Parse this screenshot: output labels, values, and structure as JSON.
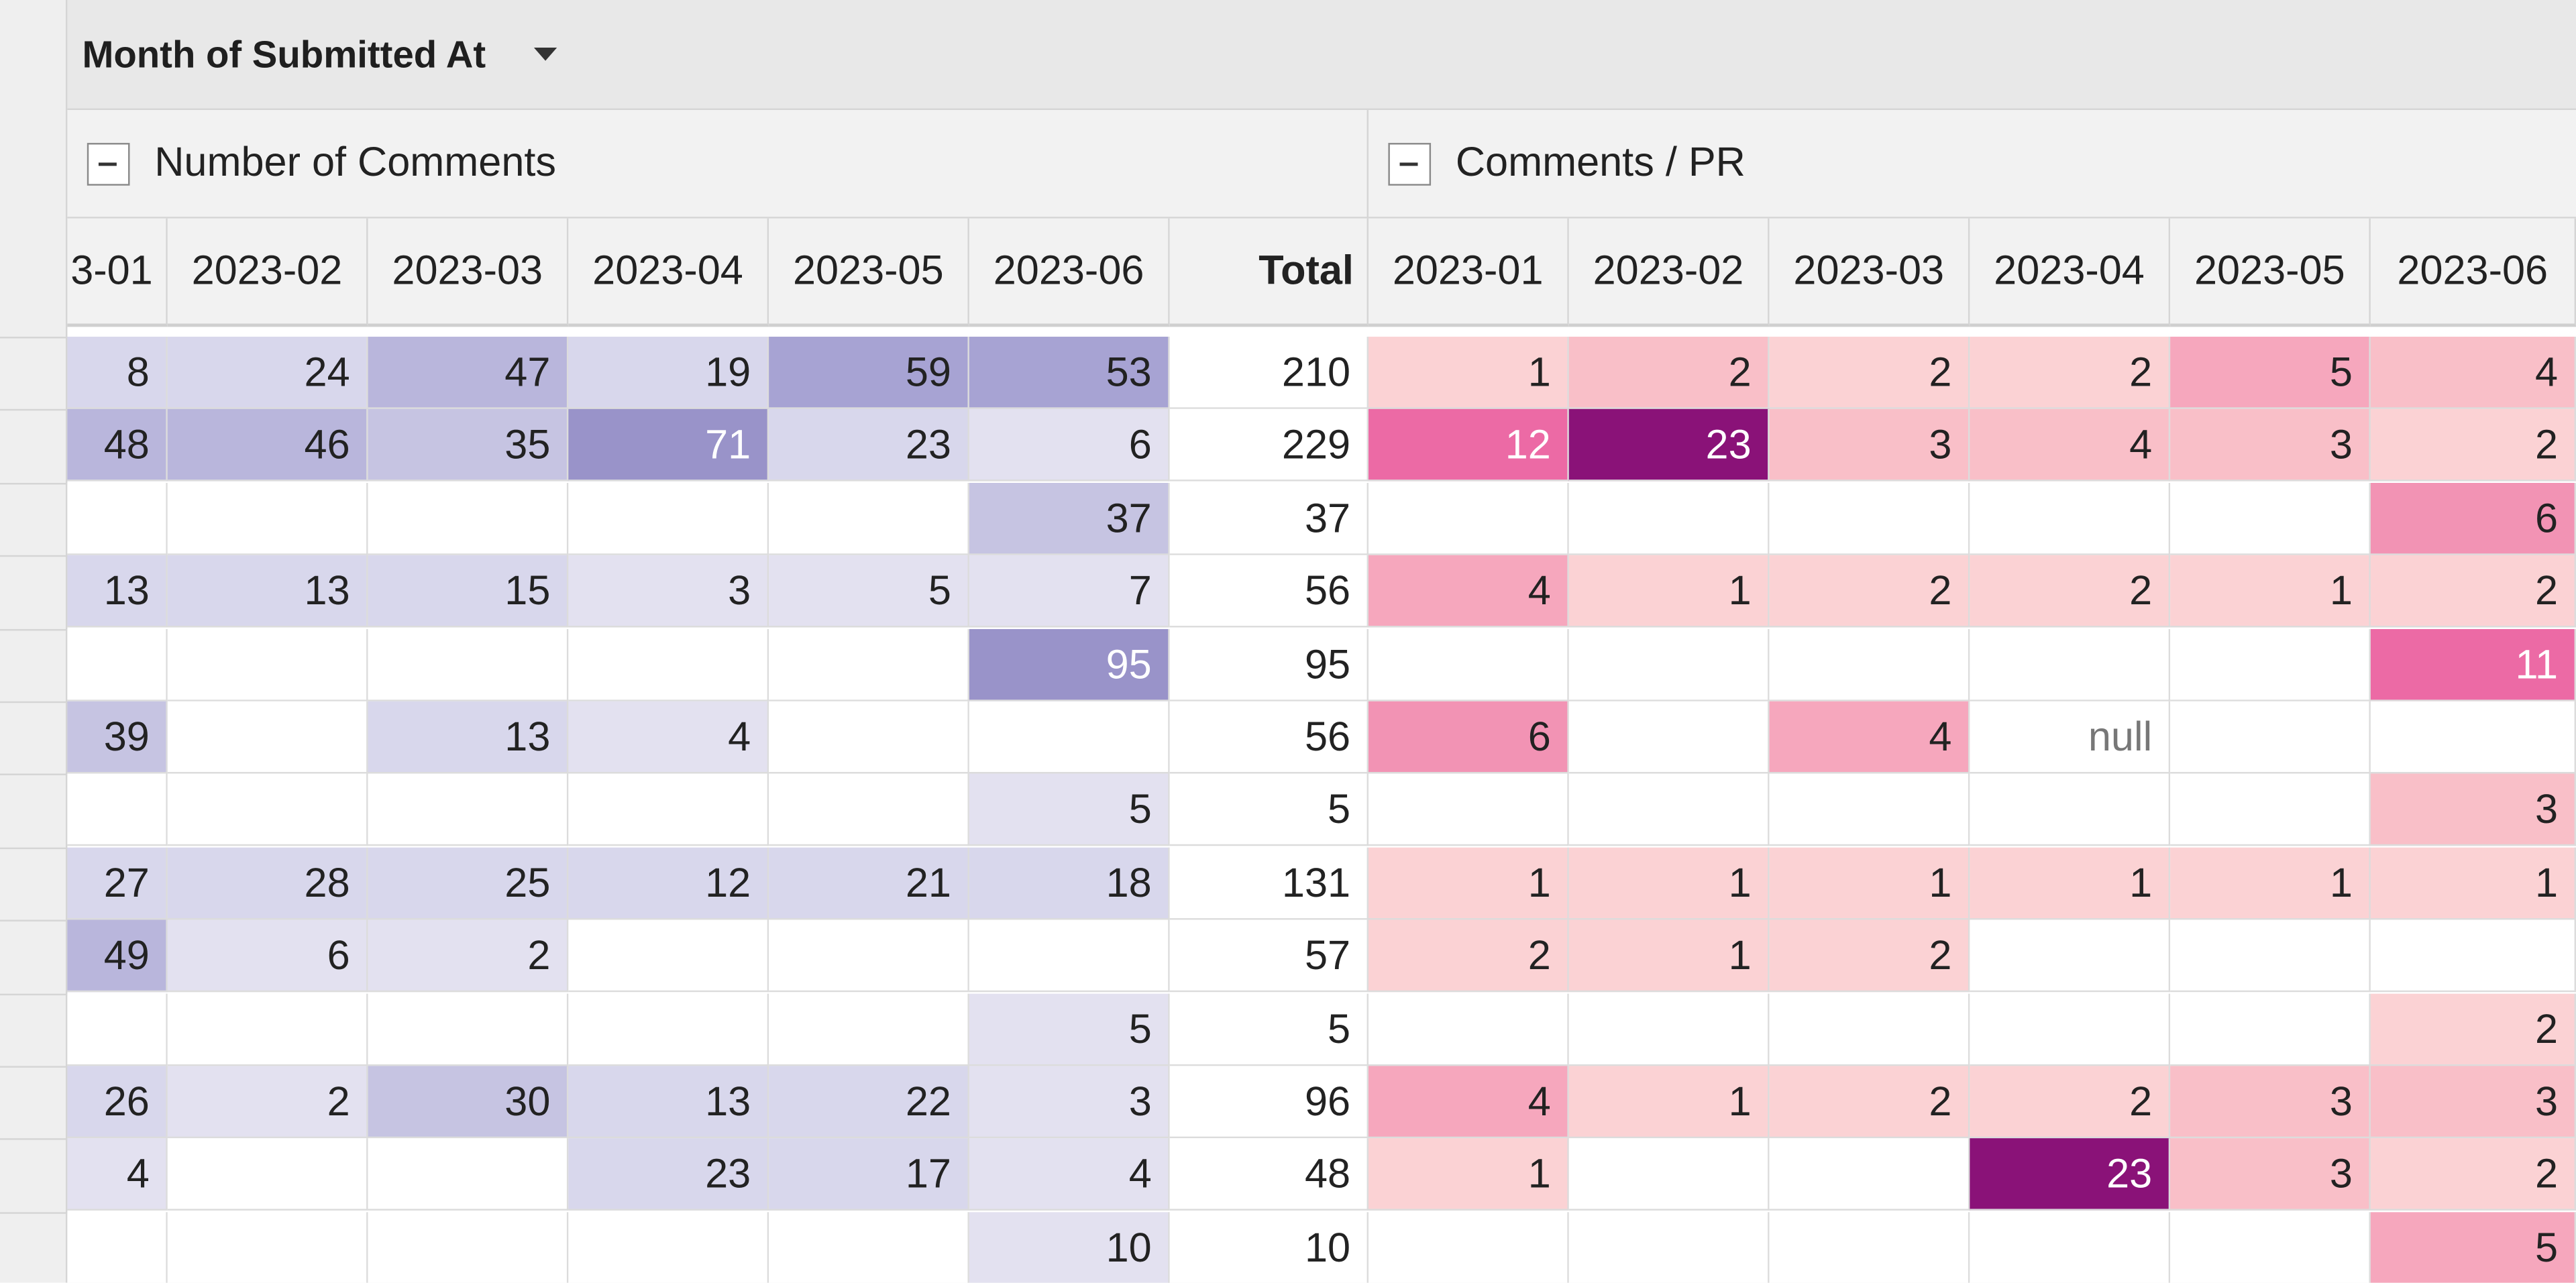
{
  "pivot": {
    "field_label": "Month of Submitted At"
  },
  "groups": [
    {
      "label": "Number of Comments"
    },
    {
      "label": "Comments / PR"
    }
  ],
  "columns": [
    "3-01",
    "2023-02",
    "2023-03",
    "2023-04",
    "2023-05",
    "2023-06",
    "Total",
    "2023-01",
    "2023-02",
    "2023-03",
    "2023-04",
    "2023-05",
    "2023-06"
  ],
  "colors": {
    "purple_scale": [
      "#e3e1f0",
      "#d8d7ec",
      "#c6c4e2",
      "#b9b6dc",
      "#a7a3d3",
      "#9993c9"
    ],
    "pink_scale": [
      "#fbd2d4",
      "#f9bfc8",
      "#f6a7bd",
      "#f293b4",
      "#ec6aa5",
      "#8a1278"
    ]
  },
  "rows": [
    {
      "values": [
        "8",
        "24",
        "47",
        "19",
        "59",
        "53",
        "210",
        "1",
        "2",
        "2",
        "2",
        "5",
        "4"
      ],
      "shade": [
        1,
        1,
        3,
        1,
        4,
        4,
        -1,
        0,
        1,
        0,
        0,
        2,
        1
      ]
    },
    {
      "values": [
        "48",
        "46",
        "35",
        "71",
        "23",
        "6",
        "229",
        "12",
        "23",
        "3",
        "4",
        "3",
        "2"
      ],
      "shade": [
        3,
        3,
        2,
        5,
        1,
        0,
        -1,
        4,
        5,
        1,
        1,
        1,
        0
      ]
    },
    {
      "values": [
        "",
        "",
        "",
        "",
        "",
        "37",
        "37",
        "",
        "",
        "",
        "",
        "",
        "6"
      ],
      "shade": [
        -1,
        -1,
        -1,
        -1,
        -1,
        2,
        -1,
        -1,
        -1,
        -1,
        -1,
        -1,
        3
      ]
    },
    {
      "values": [
        "13",
        "13",
        "15",
        "3",
        "5",
        "7",
        "56",
        "4",
        "1",
        "2",
        "2",
        "1",
        "2"
      ],
      "shade": [
        1,
        1,
        1,
        0,
        0,
        0,
        -1,
        2,
        0,
        0,
        0,
        0,
        0
      ]
    },
    {
      "values": [
        "",
        "",
        "",
        "",
        "",
        "95",
        "95",
        "",
        "",
        "",
        "",
        "",
        "11"
      ],
      "shade": [
        -1,
        -1,
        -1,
        -1,
        -1,
        5,
        -1,
        -1,
        -1,
        -1,
        -1,
        -1,
        4
      ]
    },
    {
      "values": [
        "39",
        "",
        "13",
        "4",
        "",
        "",
        "56",
        "6",
        "",
        "4",
        "null",
        "",
        ""
      ],
      "shade": [
        2,
        -1,
        1,
        0,
        -1,
        -1,
        -1,
        3,
        -1,
        2,
        -1,
        -1,
        -1
      ]
    },
    {
      "values": [
        "",
        "",
        "",
        "",
        "",
        "5",
        "5",
        "",
        "",
        "",
        "",
        "",
        "3"
      ],
      "shade": [
        -1,
        -1,
        -1,
        -1,
        -1,
        0,
        -1,
        -1,
        -1,
        -1,
        -1,
        -1,
        1
      ]
    },
    {
      "values": [
        "27",
        "28",
        "25",
        "12",
        "21",
        "18",
        "131",
        "1",
        "1",
        "1",
        "1",
        "1",
        "1"
      ],
      "shade": [
        1,
        1,
        1,
        1,
        1,
        1,
        -1,
        0,
        0,
        0,
        0,
        0,
        0
      ]
    },
    {
      "values": [
        "49",
        "6",
        "2",
        "",
        "",
        "",
        "57",
        "2",
        "1",
        "2",
        "",
        "",
        ""
      ],
      "shade": [
        3,
        0,
        0,
        -1,
        -1,
        -1,
        -1,
        0,
        0,
        0,
        -1,
        -1,
        -1
      ]
    },
    {
      "values": [
        "",
        "",
        "",
        "",
        "",
        "5",
        "5",
        "",
        "",
        "",
        "",
        "",
        "2"
      ],
      "shade": [
        -1,
        -1,
        -1,
        -1,
        -1,
        0,
        -1,
        -1,
        -1,
        -1,
        -1,
        -1,
        0
      ]
    },
    {
      "values": [
        "26",
        "2",
        "30",
        "13",
        "22",
        "3",
        "96",
        "4",
        "1",
        "2",
        "2",
        "3",
        "3"
      ],
      "shade": [
        1,
        0,
        2,
        1,
        1,
        0,
        -1,
        2,
        0,
        0,
        0,
        1,
        1
      ]
    },
    {
      "values": [
        "4",
        "",
        "",
        "23",
        "17",
        "4",
        "48",
        "1",
        "",
        "",
        "23",
        "3",
        "2"
      ],
      "shade": [
        0,
        -1,
        -1,
        1,
        1,
        0,
        -1,
        0,
        -1,
        -1,
        5,
        1,
        0
      ]
    },
    {
      "values": [
        "",
        "",
        "",
        "",
        "",
        "10",
        "10",
        "",
        "",
        "",
        "",
        "",
        "5"
      ],
      "shade": [
        -1,
        -1,
        -1,
        -1,
        -1,
        0,
        -1,
        -1,
        -1,
        -1,
        -1,
        -1,
        2
      ]
    }
  ]
}
